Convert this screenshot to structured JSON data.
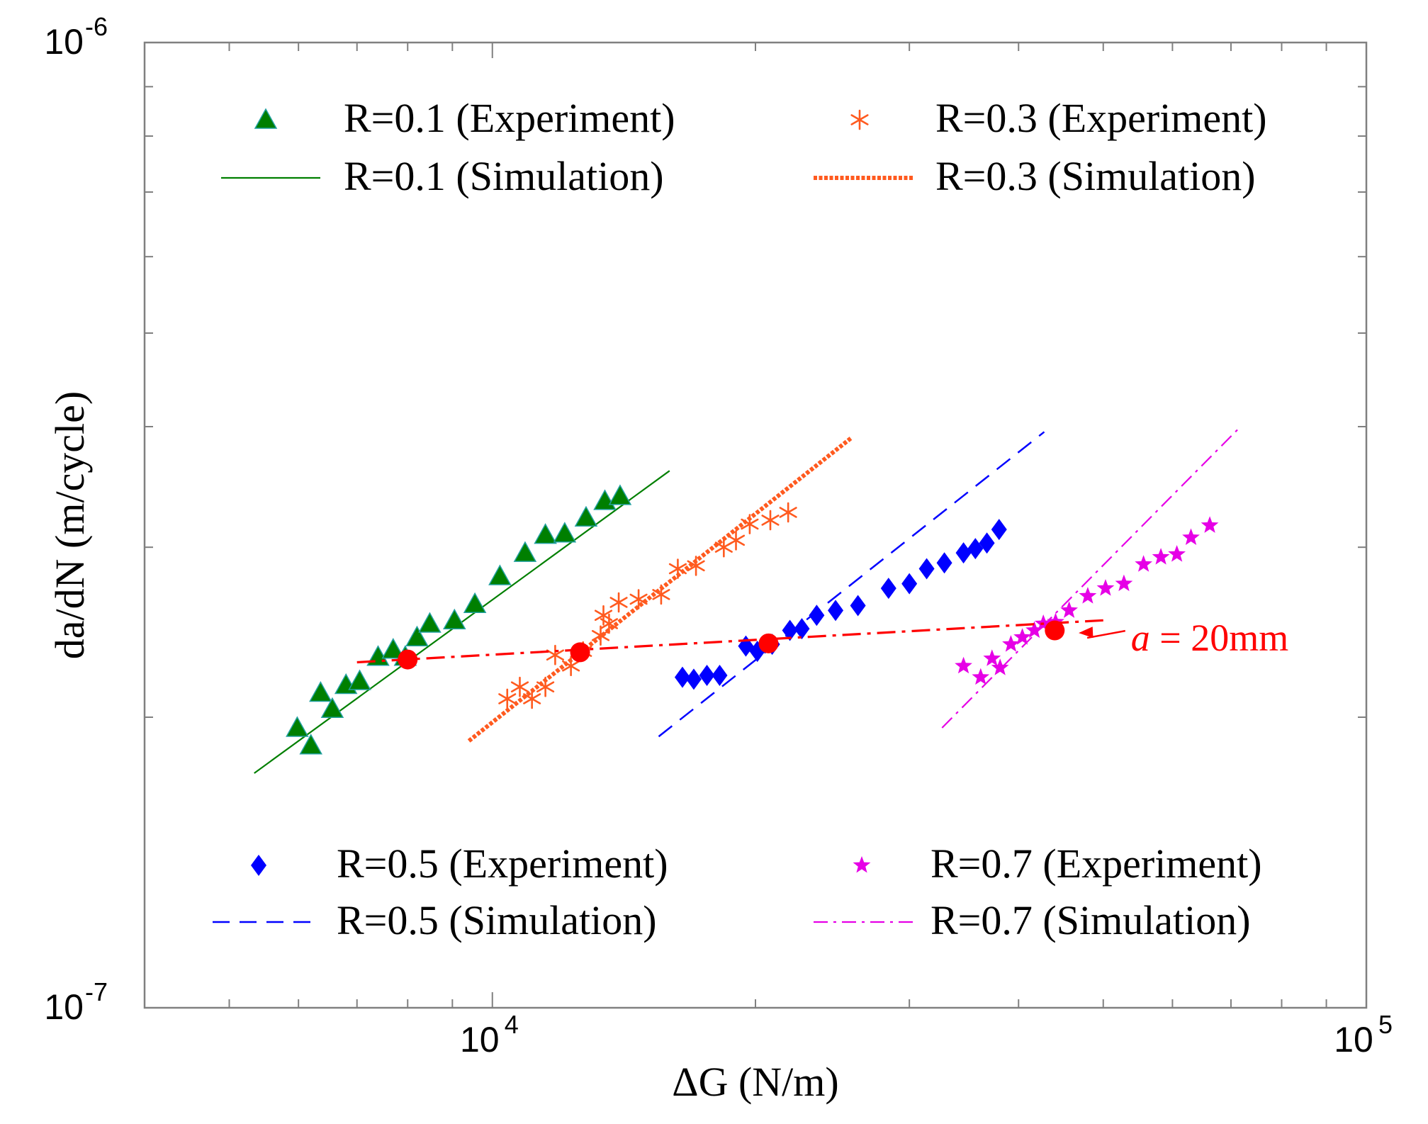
{
  "chart_data": {
    "type": "scatter",
    "x_scale": "log",
    "y_scale": "log",
    "xlim": [
      4000,
      100000
    ],
    "ylim": [
      1e-07,
      1e-06
    ],
    "xlabel": "ΔG (N/m)",
    "ylabel": "da/dN (m/cycle)",
    "x_ticks": [
      {
        "value": 10000,
        "base": "10",
        "exp": "4"
      },
      {
        "value": 100000,
        "base": "10",
        "exp": "5"
      }
    ],
    "y_ticks": [
      {
        "value": 1e-07,
        "base": "10",
        "exp": "-7"
      },
      {
        "value": 1e-06,
        "base": "10",
        "exp": "-6"
      }
    ],
    "colors": {
      "r01": "#007f00",
      "r03": "#ff5a1f",
      "r05": "#0000ff",
      "r07": "#e600e6",
      "iso": "#ff0000",
      "axis": "#808080"
    },
    "series": [
      {
        "name": "R=0.1",
        "color_key": "r01",
        "marker": "triangle",
        "experiment_label": "R=0.1 (Experiment)",
        "simulation_label": "R=0.1 (Simulation)",
        "line_style": "solid",
        "experiment": [
          [
            5980,
            1.95e-07
          ],
          [
            6200,
            1.87e-07
          ],
          [
            6360,
            2.12e-07
          ],
          [
            6560,
            2.04e-07
          ],
          [
            6800,
            2.16e-07
          ],
          [
            7050,
            2.18e-07
          ],
          [
            7400,
            2.31e-07
          ],
          [
            7700,
            2.35e-07
          ],
          [
            7950,
            2.31e-07
          ],
          [
            8200,
            2.42e-07
          ],
          [
            8480,
            2.5e-07
          ],
          [
            9050,
            2.52e-07
          ],
          [
            9550,
            2.62e-07
          ],
          [
            10200,
            2.8e-07
          ],
          [
            10900,
            2.96e-07
          ],
          [
            11500,
            3.09e-07
          ],
          [
            12100,
            3.1e-07
          ],
          [
            12800,
            3.22e-07
          ],
          [
            13450,
            3.35e-07
          ],
          [
            14000,
            3.39e-07
          ]
        ],
        "simulation": [
          [
            5340,
            1.75e-07
          ],
          [
            15950,
            3.6e-07
          ]
        ]
      },
      {
        "name": "R=0.3",
        "color_key": "r03",
        "marker": "asterisk",
        "experiment_label": "R=0.3 (Experiment)",
        "simulation_label": "R=0.3 (Simulation)",
        "line_style": "dotted-thick",
        "experiment": [
          [
            10400,
            2.09e-07
          ],
          [
            10750,
            2.15e-07
          ],
          [
            11100,
            2.09e-07
          ],
          [
            11500,
            2.15e-07
          ],
          [
            11800,
            2.32e-07
          ],
          [
            12300,
            2.26e-07
          ],
          [
            12700,
            2.34e-07
          ],
          [
            13300,
            2.43e-07
          ],
          [
            13400,
            2.55e-07
          ],
          [
            13600,
            2.5e-07
          ],
          [
            13950,
            2.63e-07
          ],
          [
            14700,
            2.65e-07
          ],
          [
            15600,
            2.68e-07
          ],
          [
            16300,
            2.85e-07
          ],
          [
            17100,
            2.87e-07
          ],
          [
            18400,
            3e-07
          ],
          [
            19000,
            3.05e-07
          ],
          [
            19700,
            3.17e-07
          ],
          [
            20800,
            3.2e-07
          ],
          [
            21800,
            3.26e-07
          ]
        ],
        "simulation": [
          [
            9400,
            1.89e-07
          ],
          [
            25800,
            3.9e-07
          ]
        ]
      },
      {
        "name": "R=0.5",
        "color_key": "r05",
        "marker": "diamond",
        "experiment_label": "R=0.5 (Experiment)",
        "simulation_label": "R=0.5 (Simulation)",
        "line_style": "dashed",
        "experiment": [
          [
            16500,
            2.2e-07
          ],
          [
            17000,
            2.19e-07
          ],
          [
            17600,
            2.21e-07
          ],
          [
            18200,
            2.21e-07
          ],
          [
            19500,
            2.37e-07
          ],
          [
            20100,
            2.34e-07
          ],
          [
            20900,
            2.38e-07
          ],
          [
            21900,
            2.46e-07
          ],
          [
            22600,
            2.47e-07
          ],
          [
            23500,
            2.55e-07
          ],
          [
            24700,
            2.58e-07
          ],
          [
            26200,
            2.61e-07
          ],
          [
            28400,
            2.72e-07
          ],
          [
            30000,
            2.75e-07
          ],
          [
            31400,
            2.85e-07
          ],
          [
            32900,
            2.89e-07
          ],
          [
            34600,
            2.96e-07
          ],
          [
            35700,
            2.99e-07
          ],
          [
            36800,
            3.03e-07
          ],
          [
            38000,
            3.13e-07
          ]
        ],
        "simulation": [
          [
            15500,
            1.91e-07
          ],
          [
            42800,
            3.95e-07
          ]
        ]
      },
      {
        "name": "R=0.7",
        "color_key": "r07",
        "marker": "star",
        "experiment_label": "R=0.7 (Experiment)",
        "simulation_label": "R=0.7 (Simulation)",
        "line_style": "dashdot",
        "experiment": [
          [
            34600,
            2.26e-07
          ],
          [
            36200,
            2.2e-07
          ],
          [
            37300,
            2.3e-07
          ],
          [
            38100,
            2.25e-07
          ],
          [
            39200,
            2.38e-07
          ],
          [
            40400,
            2.42e-07
          ],
          [
            41700,
            2.46e-07
          ],
          [
            42700,
            2.5e-07
          ],
          [
            44100,
            2.51e-07
          ],
          [
            45700,
            2.58e-07
          ],
          [
            48000,
            2.67e-07
          ],
          [
            50300,
            2.72e-07
          ],
          [
            52800,
            2.75e-07
          ],
          [
            55600,
            2.88e-07
          ],
          [
            58200,
            2.93e-07
          ],
          [
            60700,
            2.95e-07
          ],
          [
            63000,
            3.07e-07
          ],
          [
            66200,
            3.16e-07
          ]
        ],
        "simulation": [
          [
            32700,
            1.95e-07
          ],
          [
            71200,
            3.97e-07
          ]
        ]
      }
    ],
    "isoline": {
      "label": "a = 20mm",
      "label_italic": "a",
      "label_rest": " = 20mm",
      "line": [
        [
          7000,
          2.28e-07
        ],
        [
          50000,
          2.52e-07
        ]
      ],
      "points": [
        [
          8000,
          2.295e-07
        ],
        [
          12600,
          2.335e-07
        ],
        [
          20700,
          2.385e-07
        ],
        [
          44000,
          2.46e-07
        ]
      ],
      "arrow_target": [
        46000,
        2.462e-07
      ],
      "label_anchor": [
        55000,
        2.4e-07
      ]
    },
    "legend": {
      "top": [
        "R=0.1 (Experiment)",
        "R=0.1 (Simulation)",
        "R=0.3 (Experiment)",
        "R=0.3 (Simulation)"
      ],
      "bottom": [
        "R=0.5 (Experiment)",
        "R=0.5 (Simulation)",
        "R=0.7 (Experiment)",
        "R=0.7 (Simulation)"
      ]
    },
    "grid": false
  }
}
